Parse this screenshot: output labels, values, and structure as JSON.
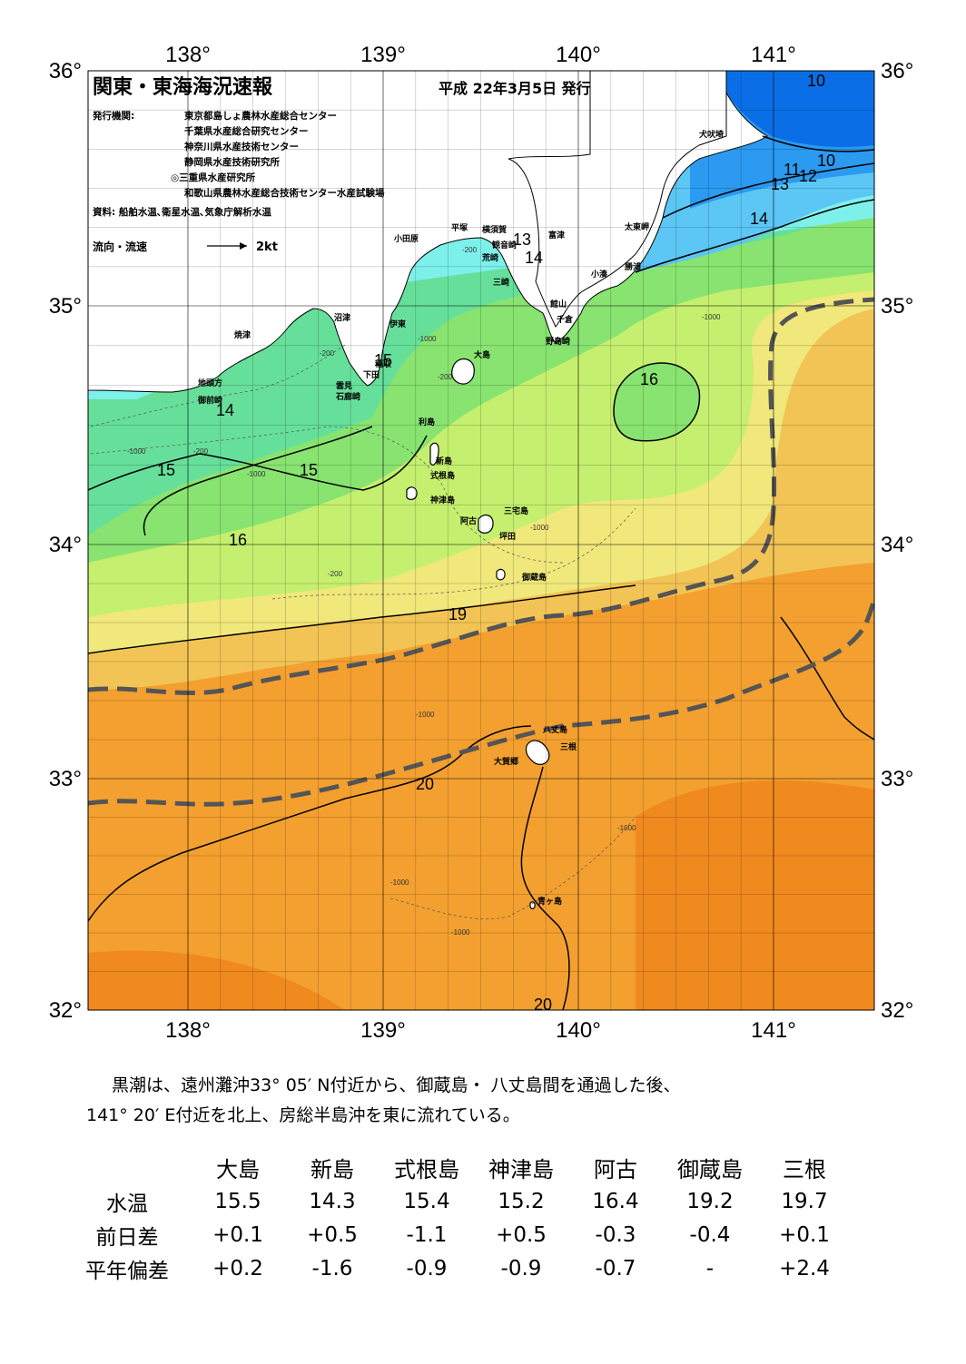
{
  "header": {
    "title": "関東・東海海況速報",
    "issue_date": "平成 22年3月5日 発行",
    "publisher_label": "発行機関:",
    "publishers": [
      "東京都島しょ農林水産総合センター",
      "千葉県水産総合研究センター",
      "神奈川県水産技術センター",
      "静岡県水産技術研究所",
      "◎三重県水産研究所",
      "和歌山県農林水産総合技術センター水産試験場"
    ],
    "source": "資料: 船舶水温､衛星水温､気象庁解析水温",
    "current_legend": "流向・流速",
    "current_scale": "2kt"
  },
  "axes": {
    "lon_labels": [
      "138°",
      "139°",
      "140°",
      "141°"
    ],
    "lat_labels": [
      "36°",
      "35°",
      "34°",
      "33°",
      "32°"
    ]
  },
  "places": [
    "犬吠埼",
    "太東岬",
    "勝浦",
    "小湊",
    "富津",
    "観音崎",
    "横須賀",
    "平塚",
    "小田原",
    "荒崎",
    "三崎",
    "館山",
    "千倉",
    "野島崎",
    "沼津",
    "伊東",
    "焼津",
    "地頭方",
    "御前崎",
    "稲取",
    "下田",
    "雲見",
    "石廊崎",
    "大島",
    "利島",
    "新島",
    "式根島",
    "神津島",
    "三宅島",
    "阿古",
    "坪田",
    "御蔵島",
    "八丈島",
    "三根",
    "大賀郷",
    "青ヶ島"
  ],
  "isotherm_labels": [
    "10",
    "10",
    "11",
    "12",
    "13",
    "14",
    "13",
    "14",
    "15",
    "14",
    "15",
    "15",
    "16",
    "16",
    "19",
    "20",
    "20"
  ],
  "depth_labels": [
    "-200",
    "-1000"
  ],
  "summary": [
    "黒潮は、遠州灘沖33° 05′ N付近から、御蔵島・ 八丈島間を通過した後、",
    "141° 20′ E付近を北上、房総半島沖を東に流れている。"
  ],
  "table": {
    "columns": [
      "大島",
      "新島",
      "式根島",
      "神津島",
      "阿古",
      "御蔵島",
      "三根"
    ],
    "rows": [
      {
        "label": "水温",
        "values": [
          "15.5",
          "14.3",
          "15.4",
          "15.2",
          "16.4",
          "19.2",
          "19.7"
        ]
      },
      {
        "label": "前日差",
        "values": [
          "+0.1",
          "+0.5",
          "-1.1",
          "+0.5",
          "-0.3",
          "-0.4",
          "+0.1"
        ]
      },
      {
        "label": "平年偏差",
        "values": [
          "+0.2",
          "-1.6",
          "-0.9",
          "-0.9",
          "-0.7",
          "-",
          "+2.4"
        ]
      }
    ]
  },
  "colors": {
    "t10": "#0a6fe6",
    "t12": "#2b9af0",
    "t13": "#5cc6f4",
    "t14": "#7ef0ea",
    "t15": "#66df9a",
    "t16": "#88e370",
    "t17": "#c5ef6e",
    "t18": "#f0e87a",
    "t19": "#f2c455",
    "t20": "#f3a030",
    "t21": "#f08a1e",
    "kuroshio": "#555555"
  }
}
